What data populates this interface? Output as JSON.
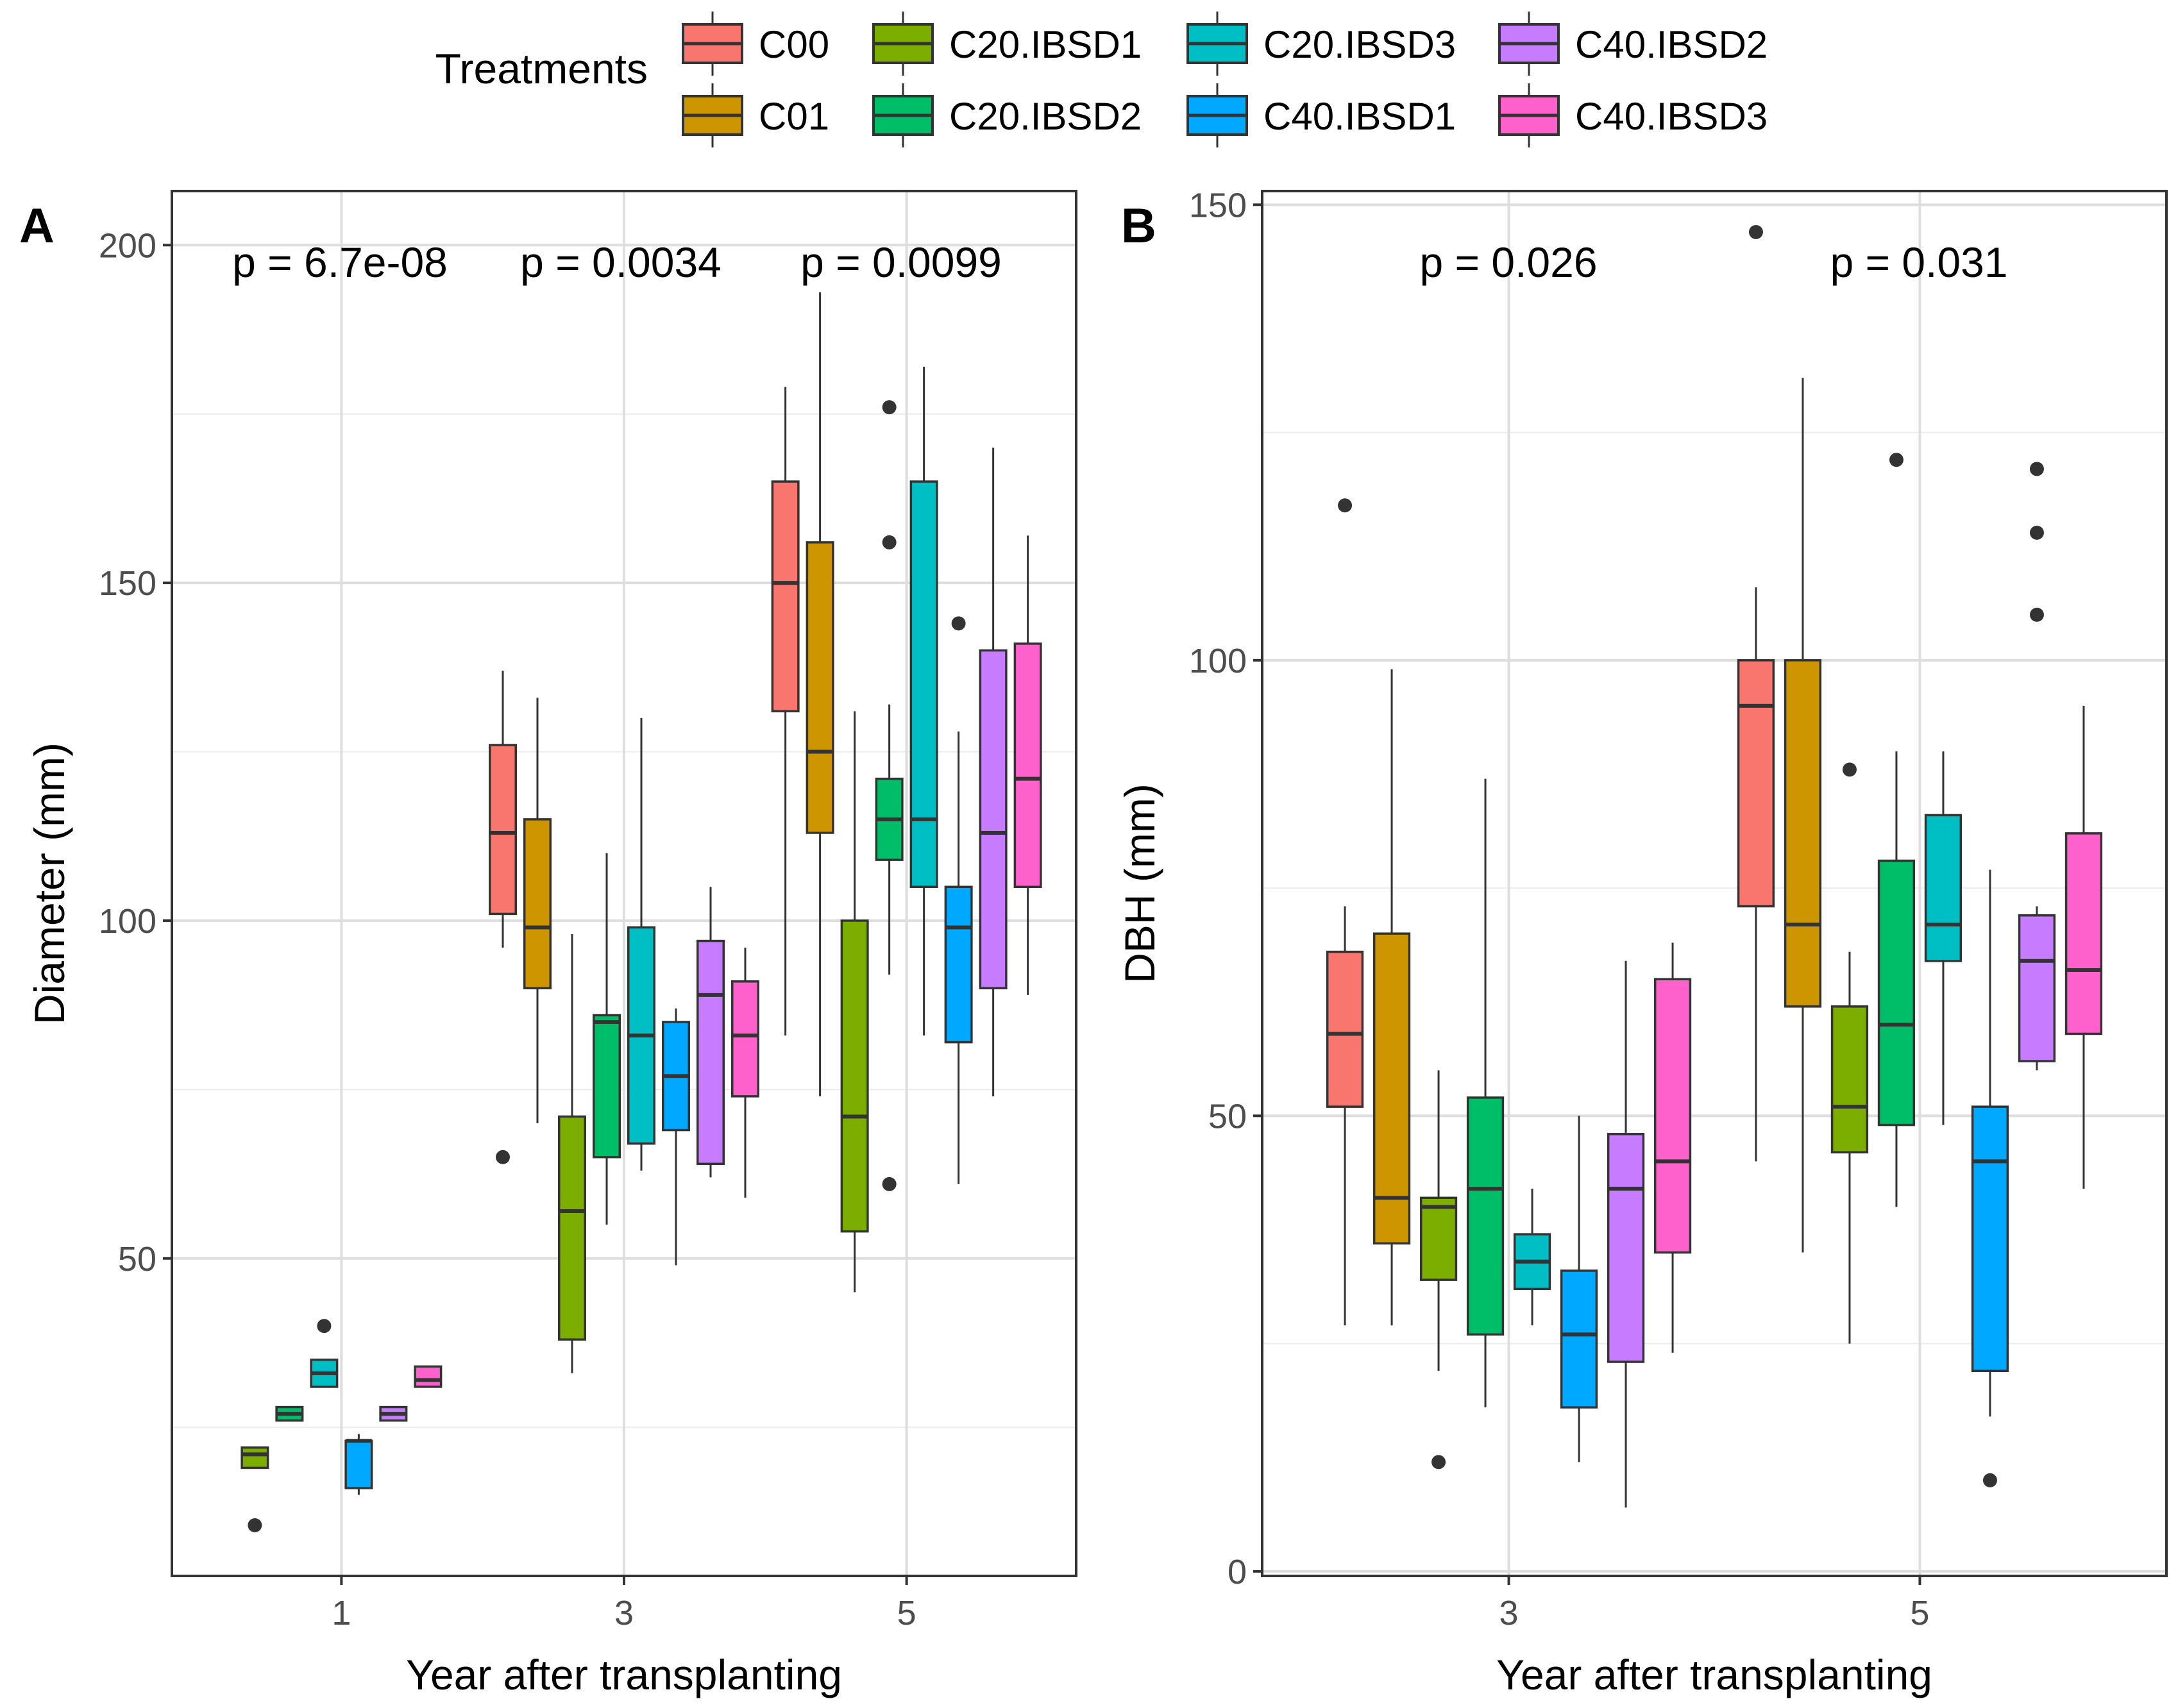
{
  "legend": {
    "title": "Treatments",
    "items": [
      {
        "label": "C00",
        "color": "#F8766D"
      },
      {
        "label": "C01",
        "color": "#CD9600"
      },
      {
        "label": "C20.IBSD1",
        "color": "#7CAE00"
      },
      {
        "label": "C20.IBSD2",
        "color": "#00BE67"
      },
      {
        "label": "C20.IBSD3",
        "color": "#00BFC4"
      },
      {
        "label": "C40.IBSD1",
        "color": "#00A9FF"
      },
      {
        "label": "C40.IBSD2",
        "color": "#C77CFF"
      },
      {
        "label": "C40.IBSD3",
        "color": "#FF61CC"
      }
    ]
  },
  "chart_data": [
    {
      "type": "box",
      "panel_label": "A",
      "xlabel": "Year after transplanting",
      "ylabel": "Diameter (mm)",
      "ylim": [
        3,
        208
      ],
      "yticks": [
        50,
        100,
        150,
        200
      ],
      "ygrid_minor": [
        25,
        75,
        125,
        175
      ],
      "categories": [
        "1",
        "3",
        "5"
      ],
      "p_values": [
        "p = 6.7e-08",
        "p = 0.0034",
        "p = 0.0099"
      ],
      "groups": [
        {
          "category": "1",
          "boxes": [
            {
              "treatment": "C20.IBSD1",
              "whisker_low": 19,
              "q1": 19,
              "median": 21,
              "q3": 22,
              "whisker_high": 22,
              "outliers": [
                10.5
              ]
            },
            {
              "treatment": "C20.IBSD2",
              "whisker_low": 26,
              "q1": 26,
              "median": 27,
              "q3": 28,
              "whisker_high": 28,
              "outliers": []
            },
            {
              "treatment": "C20.IBSD3",
              "whisker_low": 31,
              "q1": 31,
              "median": 33,
              "q3": 35,
              "whisker_high": 35,
              "outliers": [
                40
              ]
            },
            {
              "treatment": "C40.IBSD1",
              "whisker_low": 15,
              "q1": 16,
              "median": 23,
              "q3": 23,
              "whisker_high": 24,
              "outliers": []
            },
            {
              "treatment": "C40.IBSD2",
              "whisker_low": 26,
              "q1": 26,
              "median": 27,
              "q3": 28,
              "whisker_high": 28,
              "outliers": []
            },
            {
              "treatment": "C40.IBSD3",
              "whisker_low": 31,
              "q1": 31,
              "median": 32,
              "q3": 34,
              "whisker_high": 34,
              "outliers": []
            }
          ]
        },
        {
          "category": "3",
          "boxes": [
            {
              "treatment": "C00",
              "whisker_low": 96,
              "q1": 101,
              "median": 113,
              "q3": 126,
              "whisker_high": 137,
              "outliers": [
                65
              ]
            },
            {
              "treatment": "C01",
              "whisker_low": 70,
              "q1": 90,
              "median": 99,
              "q3": 115,
              "whisker_high": 133,
              "outliers": []
            },
            {
              "treatment": "C20.IBSD1",
              "whisker_low": 33,
              "q1": 38,
              "median": 57,
              "q3": 71,
              "whisker_high": 98,
              "outliers": []
            },
            {
              "treatment": "C20.IBSD2",
              "whisker_low": 55,
              "q1": 65,
              "median": 85,
              "q3": 86,
              "whisker_high": 110,
              "outliers": []
            },
            {
              "treatment": "C20.IBSD3",
              "whisker_low": 63,
              "q1": 67,
              "median": 83,
              "q3": 99,
              "whisker_high": 130,
              "outliers": []
            },
            {
              "treatment": "C40.IBSD1",
              "whisker_low": 49,
              "q1": 69,
              "median": 77,
              "q3": 85,
              "whisker_high": 87,
              "outliers": []
            },
            {
              "treatment": "C40.IBSD2",
              "whisker_low": 62,
              "q1": 64,
              "median": 89,
              "q3": 97,
              "whisker_high": 105,
              "outliers": []
            },
            {
              "treatment": "C40.IBSD3",
              "whisker_low": 59,
              "q1": 74,
              "median": 83,
              "q3": 91,
              "whisker_high": 96,
              "outliers": []
            }
          ]
        },
        {
          "category": "5",
          "boxes": [
            {
              "treatment": "C00",
              "whisker_low": 83,
              "q1": 131,
              "median": 150,
              "q3": 165,
              "whisker_high": 179,
              "outliers": []
            },
            {
              "treatment": "C01",
              "whisker_low": 74,
              "q1": 113,
              "median": 125,
              "q3": 156,
              "whisker_high": 193,
              "outliers": []
            },
            {
              "treatment": "C20.IBSD1",
              "whisker_low": 45,
              "q1": 54,
              "median": 71,
              "q3": 100,
              "whisker_high": 131,
              "outliers": []
            },
            {
              "treatment": "C20.IBSD2",
              "whisker_low": 92,
              "q1": 109,
              "median": 115,
              "q3": 121,
              "whisker_high": 132,
              "outliers": [
                61,
                156,
                176
              ]
            },
            {
              "treatment": "C20.IBSD3",
              "whisker_low": 83,
              "q1": 105,
              "median": 115,
              "q3": 165,
              "whisker_high": 182,
              "outliers": []
            },
            {
              "treatment": "C40.IBSD1",
              "whisker_low": 61,
              "q1": 82,
              "median": 99,
              "q3": 105,
              "whisker_high": 128,
              "outliers": [
                144
              ]
            },
            {
              "treatment": "C40.IBSD2",
              "whisker_low": 74,
              "q1": 90,
              "median": 113,
              "q3": 140,
              "whisker_high": 170,
              "outliers": []
            },
            {
              "treatment": "C40.IBSD3",
              "whisker_low": 89,
              "q1": 105,
              "median": 121,
              "q3": 141,
              "whisker_high": 157,
              "outliers": []
            }
          ]
        }
      ]
    },
    {
      "type": "box",
      "panel_label": "B",
      "xlabel": "Year after transplanting",
      "ylabel": "DBH (mm)",
      "ylim": [
        -0.5,
        151.5
      ],
      "yticks": [
        0,
        50,
        100,
        150
      ],
      "ygrid_minor": [
        25,
        75,
        125
      ],
      "categories": [
        "3",
        "5"
      ],
      "p_values": [
        "p = 0.026",
        "p = 0.031"
      ],
      "groups": [
        {
          "category": "3",
          "boxes": [
            {
              "treatment": "C00",
              "whisker_low": 27,
              "q1": 51,
              "median": 59,
              "q3": 68,
              "whisker_high": 73,
              "outliers": [
                117
              ]
            },
            {
              "treatment": "C01",
              "whisker_low": 27,
              "q1": 36,
              "median": 41,
              "q3": 70,
              "whisker_high": 99,
              "outliers": []
            },
            {
              "treatment": "C20.IBSD1",
              "whisker_low": 22,
              "q1": 32,
              "median": 40,
              "q3": 41,
              "whisker_high": 55,
              "outliers": [
                12
              ]
            },
            {
              "treatment": "C20.IBSD2",
              "whisker_low": 18,
              "q1": 26,
              "median": 42,
              "q3": 52,
              "whisker_high": 87,
              "outliers": []
            },
            {
              "treatment": "C20.IBSD3",
              "whisker_low": 27,
              "q1": 31,
              "median": 34,
              "q3": 37,
              "whisker_high": 42,
              "outliers": []
            },
            {
              "treatment": "C40.IBSD1",
              "whisker_low": 12,
              "q1": 18,
              "median": 26,
              "q3": 33,
              "whisker_high": 50,
              "outliers": []
            },
            {
              "treatment": "C40.IBSD2",
              "whisker_low": 7,
              "q1": 23,
              "median": 42,
              "q3": 48,
              "whisker_high": 67,
              "outliers": []
            },
            {
              "treatment": "C40.IBSD3",
              "whisker_low": 24,
              "q1": 35,
              "median": 45,
              "q3": 65,
              "whisker_high": 69,
              "outliers": []
            }
          ]
        },
        {
          "category": "5",
          "boxes": [
            {
              "treatment": "C00",
              "whisker_low": 45,
              "q1": 73,
              "median": 95,
              "q3": 100,
              "whisker_high": 108,
              "outliers": [
                147
              ]
            },
            {
              "treatment": "C01",
              "whisker_low": 35,
              "q1": 62,
              "median": 71,
              "q3": 100,
              "whisker_high": 131,
              "outliers": []
            },
            {
              "treatment": "C20.IBSD1",
              "whisker_low": 25,
              "q1": 46,
              "median": 51,
              "q3": 62,
              "whisker_high": 68,
              "outliers": [
                88
              ]
            },
            {
              "treatment": "C20.IBSD2",
              "whisker_low": 40,
              "q1": 49,
              "median": 60,
              "q3": 78,
              "whisker_high": 90,
              "outliers": [
                122
              ]
            },
            {
              "treatment": "C20.IBSD3",
              "whisker_low": 49,
              "q1": 67,
              "median": 71,
              "q3": 83,
              "whisker_high": 90,
              "outliers": []
            },
            {
              "treatment": "C40.IBSD1",
              "whisker_low": 17,
              "q1": 22,
              "median": 45,
              "q3": 51,
              "whisker_high": 77,
              "outliers": [
                10
              ]
            },
            {
              "treatment": "C40.IBSD2",
              "whisker_low": 55,
              "q1": 56,
              "median": 67,
              "q3": 72,
              "whisker_high": 73,
              "outliers": [
                105,
                114,
                121
              ]
            },
            {
              "treatment": "C40.IBSD3",
              "whisker_low": 42,
              "q1": 59,
              "median": 66,
              "q3": 81,
              "whisker_high": 95,
              "outliers": []
            }
          ]
        }
      ]
    }
  ]
}
